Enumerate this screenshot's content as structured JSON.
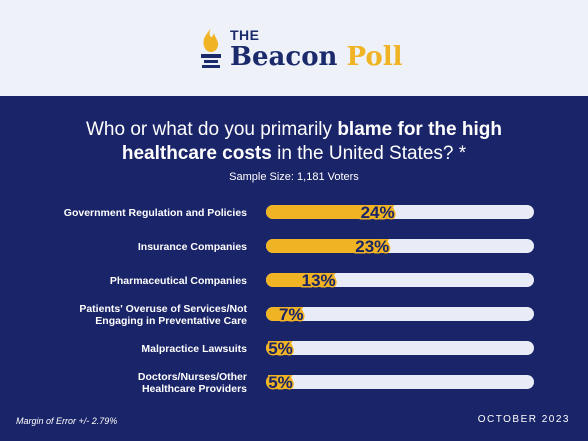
{
  "brand": {
    "the": "THE",
    "name": "Beacon",
    "name_accent": "Poll",
    "colors": {
      "navy": "#1a2468",
      "gold": "#f0b323",
      "header_bg": "#eef1f8"
    },
    "icon": "torch-icon"
  },
  "question": {
    "part1": "Who or what do you primarily ",
    "bold": "blame for the high healthcare costs",
    "part2": " in the United States? *"
  },
  "sample": "Sample Size: 1,181 Voters",
  "footer": {
    "margin_of_error": "Margin of Error +/- 2.79%",
    "date": "OCTOBER 2023"
  },
  "chart_data": {
    "type": "bar",
    "orientation": "horizontal",
    "categories": [
      [
        "Government Regulation and Policies"
      ],
      [
        "Insurance Companies"
      ],
      [
        "Pharmaceutical Companies"
      ],
      [
        "Patients' Overuse of Services/Not",
        "Engaging in Preventative Care"
      ],
      [
        "Malpractice Lawsuits"
      ],
      [
        "Doctors/Nurses/Other",
        "Healthcare Providers"
      ]
    ],
    "values": [
      24,
      23,
      13,
      7,
      5,
      5
    ],
    "labels": [
      "24%",
      "23%",
      "13%",
      "7%",
      "5%",
      "5%"
    ],
    "xlim": [
      0,
      100
    ]
  }
}
